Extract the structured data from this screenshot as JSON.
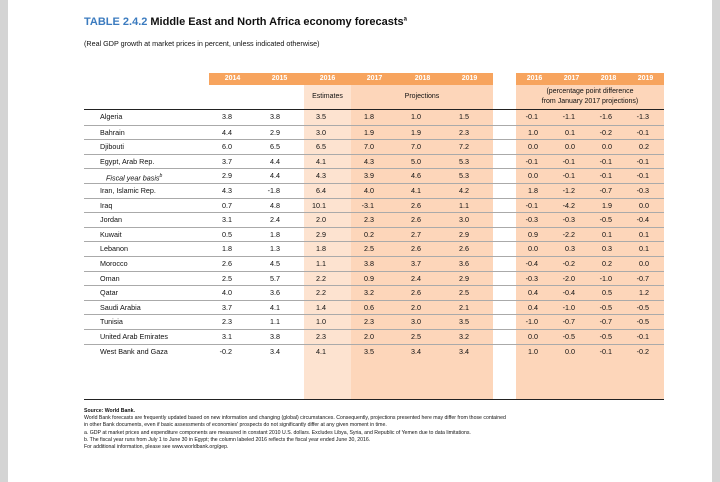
{
  "title": {
    "number": "TABLE 2.4.2",
    "text": "Middle East and North Africa economy forecasts",
    "sup": "a"
  },
  "subtitle": "(Real GDP growth at market prices in percent, unless indicated otherwise)",
  "header": {
    "years_left": [
      "2014",
      "2015",
      "2016",
      "2017",
      "2018",
      "2019"
    ],
    "years_right": [
      "2016",
      "2017",
      "2018",
      "2019"
    ],
    "estimates": "Estimates",
    "projections": "Projections",
    "diff_line1": "(percentage point difference",
    "diff_line2": "from January 2017 projections)"
  },
  "rows": [
    {
      "name": "Algeria",
      "v": [
        "3.8",
        "3.8",
        "3.5",
        "1.8",
        "1.0",
        "1.5"
      ],
      "d": [
        "-0.1",
        "-1.1",
        "-1.6",
        "-1.3"
      ]
    },
    {
      "name": "Bahrain",
      "v": [
        "4.4",
        "2.9",
        "3.0",
        "1.9",
        "1.9",
        "2.3"
      ],
      "d": [
        "1.0",
        "0.1",
        "-0.2",
        "-0.1"
      ]
    },
    {
      "name": "Djibouti",
      "v": [
        "6.0",
        "6.5",
        "6.5",
        "7.0",
        "7.0",
        "7.2"
      ],
      "d": [
        "0.0",
        "0.0",
        "0.0",
        "0.2"
      ]
    },
    {
      "name": "Egypt, Arab Rep.",
      "v": [
        "3.7",
        "4.4",
        "4.1",
        "4.3",
        "5.0",
        "5.3"
      ],
      "d": [
        "-0.1",
        "-0.1",
        "-0.1",
        "-0.1"
      ]
    },
    {
      "name": "Fiscal year basis",
      "sup": "b",
      "italic": true,
      "v": [
        "2.9",
        "4.4",
        "4.3",
        "3.9",
        "4.6",
        "5.3"
      ],
      "d": [
        "0.0",
        "-0.1",
        "-0.1",
        "-0.1"
      ]
    },
    {
      "name": "Iran, Islamic Rep.",
      "v": [
        "4.3",
        "-1.8",
        "6.4",
        "4.0",
        "4.1",
        "4.2"
      ],
      "d": [
        "1.8",
        "-1.2",
        "-0.7",
        "-0.3"
      ]
    },
    {
      "name": "Iraq",
      "v": [
        "0.7",
        "4.8",
        "10.1",
        "-3.1",
        "2.6",
        "1.1"
      ],
      "d": [
        "-0.1",
        "-4.2",
        "1.9",
        "0.0"
      ]
    },
    {
      "name": "Jordan",
      "v": [
        "3.1",
        "2.4",
        "2.0",
        "2.3",
        "2.6",
        "3.0"
      ],
      "d": [
        "-0.3",
        "-0.3",
        "-0.5",
        "-0.4"
      ]
    },
    {
      "name": "Kuwait",
      "v": [
        "0.5",
        "1.8",
        "2.9",
        "0.2",
        "2.7",
        "2.9"
      ],
      "d": [
        "0.9",
        "-2.2",
        "0.1",
        "0.1"
      ]
    },
    {
      "name": "Lebanon",
      "v": [
        "1.8",
        "1.3",
        "1.8",
        "2.5",
        "2.6",
        "2.6"
      ],
      "d": [
        "0.0",
        "0.3",
        "0.3",
        "0.1"
      ]
    },
    {
      "name": "Morocco",
      "v": [
        "2.6",
        "4.5",
        "1.1",
        "3.8",
        "3.7",
        "3.6"
      ],
      "d": [
        "-0.4",
        "-0.2",
        "0.2",
        "0.0"
      ]
    },
    {
      "name": "Oman",
      "v": [
        "2.5",
        "5.7",
        "2.2",
        "0.9",
        "2.4",
        "2.9"
      ],
      "d": [
        "-0.3",
        "-2.0",
        "-1.0",
        "-0.7"
      ]
    },
    {
      "name": "Qatar",
      "v": [
        "4.0",
        "3.6",
        "2.2",
        "3.2",
        "2.6",
        "2.5"
      ],
      "d": [
        "0.4",
        "-0.4",
        "0.5",
        "1.2"
      ]
    },
    {
      "name": "Saudi Arabia",
      "v": [
        "3.7",
        "4.1",
        "1.4",
        "0.6",
        "2.0",
        "2.1"
      ],
      "d": [
        "0.4",
        "-1.0",
        "-0.5",
        "-0.5"
      ]
    },
    {
      "name": "Tunisia",
      "v": [
        "2.3",
        "1.1",
        "1.0",
        "2.3",
        "3.0",
        "3.5"
      ],
      "d": [
        "-1.0",
        "-0.7",
        "-0.7",
        "-0.5"
      ]
    },
    {
      "name": "United Arab Emirates",
      "v": [
        "3.1",
        "3.8",
        "2.3",
        "2.0",
        "2.5",
        "3.2"
      ],
      "d": [
        "0.0",
        "-0.5",
        "-0.5",
        "-0.1"
      ]
    },
    {
      "name": "West Bank and Gaza",
      "v": [
        "-0.2",
        "3.4",
        "4.1",
        "3.5",
        "3.4",
        "3.4"
      ],
      "d": [
        "1.0",
        "0.0",
        "-0.1",
        "-0.2"
      ]
    }
  ],
  "notes": {
    "source": "Source: World Bank.",
    "n1a": "World Bank forecasts are frequently updated based on new information and changing (global) circumstances. Consequently, projections presented here may differ from those contained",
    "n1b": "in other Bank documents, even if basic assessments of economies' prospects do not significantly differ at any given moment in time.",
    "na": "a. GDP at market prices and expenditure components are measured in constant 2010 U.S. dollars. Excludes Libya, Syria, and Republic of Yemen due to data limitations.",
    "nb": "b. The fiscal year runs from July 1 to June 30 in Egypt; the column labeled 2016 reflects the fiscal year ended June 30, 2016.",
    "more": "For additional information, please see www.worldbank.org/gep."
  },
  "colors": {
    "accent_title": "#3b7bbf",
    "header_orange": "#f7a45e",
    "column_peach": "#fdd6ba"
  }
}
